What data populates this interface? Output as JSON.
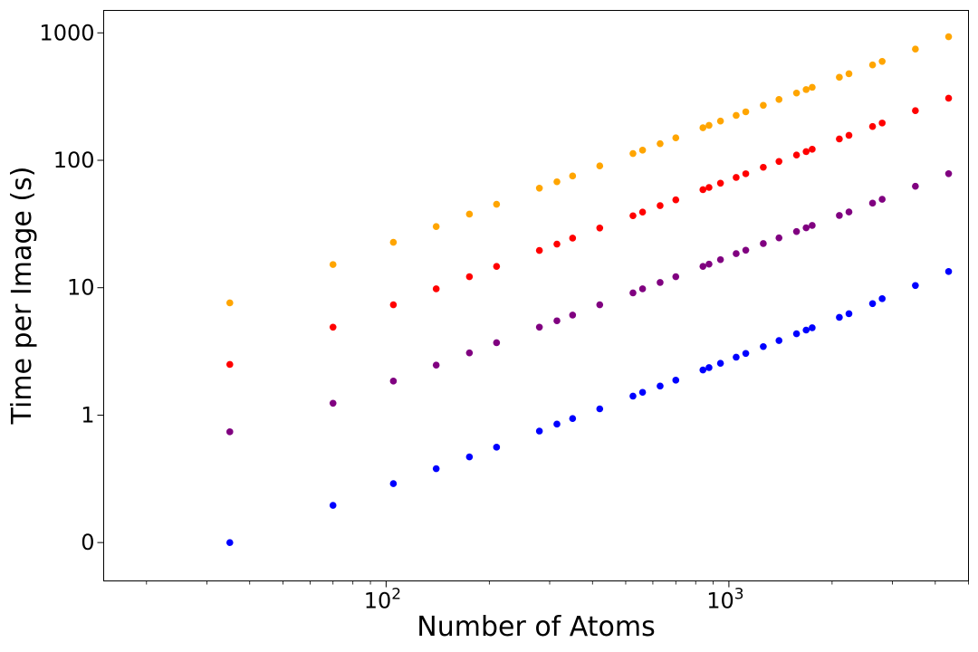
{
  "chart_data": {
    "type": "scatter",
    "title": "",
    "xlabel": "Number of Atoms",
    "ylabel": "Time per Image (s)",
    "x_scale": "log",
    "y_scale": "log",
    "xlim": [
      15,
      5000
    ],
    "ylim": [
      0.05,
      1500
    ],
    "grid": false,
    "legend": "none",
    "x_ticks": [
      {
        "value": 100,
        "base": "10",
        "exp": "2"
      },
      {
        "value": 1000,
        "base": "10",
        "exp": "3"
      }
    ],
    "y_ticks": [
      {
        "value": 0.1,
        "label": "0"
      },
      {
        "value": 1,
        "label": "1"
      },
      {
        "value": 10,
        "label": "10"
      },
      {
        "value": 100,
        "label": "100"
      },
      {
        "value": 1000,
        "label": "1000"
      }
    ],
    "x": [
      35,
      70,
      105,
      140,
      175,
      210,
      280,
      315,
      350,
      420,
      525,
      560,
      630,
      700,
      840,
      875,
      945,
      1050,
      1120,
      1260,
      1400,
      1575,
      1680,
      1750,
      2100,
      2240,
      2625,
      2800,
      3500,
      4375
    ],
    "series": [
      {
        "color": "#0000ff",
        "values": [
          0.1,
          0.196,
          0.29,
          0.38,
          0.47,
          0.56,
          0.75,
          0.85,
          0.94,
          1.12,
          1.41,
          1.51,
          1.69,
          1.88,
          2.26,
          2.36,
          2.55,
          2.85,
          3.05,
          3.45,
          3.85,
          4.35,
          4.65,
          4.85,
          5.85,
          6.25,
          7.5,
          8.2,
          10.4,
          13.4
        ]
      },
      {
        "color": "#800080",
        "values": [
          0.74,
          1.24,
          1.85,
          2.47,
          3.08,
          3.7,
          4.9,
          5.5,
          6.1,
          7.35,
          9.1,
          9.8,
          11.0,
          12.2,
          14.7,
          15.3,
          16.6,
          18.5,
          19.7,
          22.2,
          24.6,
          27.6,
          29.5,
          30.8,
          36.9,
          39.3,
          46.1,
          49.4,
          62.5,
          78.5
        ]
      },
      {
        "color": "#ff0000",
        "values": [
          2.5,
          4.9,
          7.35,
          9.8,
          12.2,
          14.7,
          19.6,
          22.0,
          24.5,
          29.4,
          36.7,
          39.2,
          44.1,
          48.9,
          58.8,
          61.2,
          66.1,
          73.4,
          78.4,
          88.1,
          97.9,
          110,
          117,
          122,
          147,
          157,
          184,
          196,
          245,
          307
        ]
      },
      {
        "color": "#ffa500",
        "values": [
          7.6,
          15.2,
          22.7,
          30.2,
          37.8,
          45.2,
          60.4,
          67.8,
          75.3,
          90.3,
          113,
          120,
          135,
          150,
          180,
          188,
          203,
          225,
          240,
          270,
          300,
          337,
          359,
          374,
          448,
          478,
          560,
          597,
          746,
          933
        ]
      }
    ]
  }
}
